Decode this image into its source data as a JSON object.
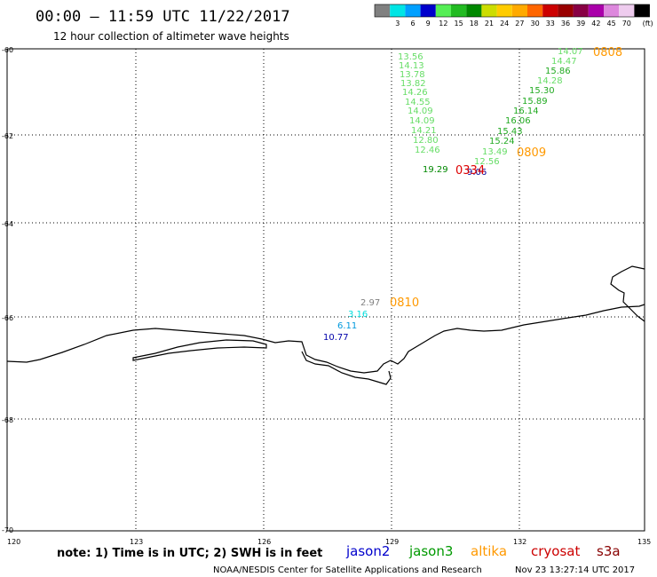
{
  "header": {
    "title": "00:00 – 11:59 UTC 11/22/2017",
    "subtitle": "12 hour collection of altimeter wave heights"
  },
  "legend": {
    "colors": [
      "#808080",
      "#00e5e5",
      "#00a0ff",
      "#0000cc",
      "#55ee55",
      "#22bb22",
      "#008800",
      "#ccdd00",
      "#ffcc00",
      "#ffaa00",
      "#ff6600",
      "#cc0000",
      "#990000",
      "#880044",
      "#aa00aa",
      "#dd88dd",
      "#eeccee",
      "#000000"
    ],
    "labels": [
      "3",
      "6",
      "9",
      "12",
      "15",
      "18",
      "21",
      "24",
      "27",
      "30",
      "33",
      "36",
      "39",
      "42",
      "45",
      "70"
    ],
    "unit": "(ft)"
  },
  "map": {
    "lon_ticks": [
      "120",
      "123",
      "126",
      "129",
      "132",
      "135"
    ],
    "lat_ticks": [
      "-60",
      "-62",
      "-64",
      "-66",
      "-68",
      "-70"
    ]
  },
  "readings": [
    {
      "text": "13.56",
      "color": "#66dd66"
    },
    {
      "text": "14.13",
      "color": "#66dd66"
    },
    {
      "text": "13.78",
      "color": "#66dd66"
    },
    {
      "text": "13.82",
      "color": "#66dd66"
    },
    {
      "text": "14.26",
      "color": "#66dd66"
    },
    {
      "text": "14.55",
      "color": "#66dd66"
    },
    {
      "text": "14.09",
      "color": "#66dd66"
    },
    {
      "text": "14.09",
      "color": "#66dd66"
    },
    {
      "text": "14.21",
      "color": "#66dd66"
    },
    {
      "text": "12.80",
      "color": "#66dd66"
    },
    {
      "text": "12.46",
      "color": "#66dd66"
    },
    {
      "text": "19.29",
      "color": "#008800"
    },
    {
      "text": "14.07",
      "color": "#66dd66"
    },
    {
      "text": "14.47",
      "color": "#66dd66"
    },
    {
      "text": "15.86",
      "color": "#22aa22"
    },
    {
      "text": "14.28",
      "color": "#66dd66"
    },
    {
      "text": "15.30",
      "color": "#22aa22"
    },
    {
      "text": "15.89",
      "color": "#22aa22"
    },
    {
      "text": "16.14",
      "color": "#22aa22"
    },
    {
      "text": "16.06",
      "color": "#22aa22"
    },
    {
      "text": "15.43",
      "color": "#22aa22"
    },
    {
      "text": "15.24",
      "color": "#22aa22"
    },
    {
      "text": "13.49",
      "color": "#66dd66"
    },
    {
      "text": "12.56",
      "color": "#66dd66"
    },
    {
      "text": "9.06",
      "color": "#000099"
    },
    {
      "text": "2.97",
      "color": "#808080"
    },
    {
      "text": "3.16",
      "color": "#00dddd"
    },
    {
      "text": "6.11",
      "color": "#0099dd"
    },
    {
      "text": "10.77",
      "color": "#0000aa"
    }
  ],
  "times": [
    {
      "text": "0808",
      "color": "#ff9900"
    },
    {
      "text": "0809",
      "color": "#ff9900"
    },
    {
      "text": "0334",
      "color": "#dd0000"
    },
    {
      "text": "0810",
      "color": "#ff9900"
    }
  ],
  "footer": {
    "note": "note:  1) Time is in UTC;  2) SWH is in feet",
    "satellites": [
      {
        "name": "jason2",
        "color": "#0000cc"
      },
      {
        "name": "jason3",
        "color": "#009900"
      },
      {
        "name": "altika",
        "color": "#ff9900"
      },
      {
        "name": "cryosat",
        "color": "#cc0000"
      },
      {
        "name": "s3a",
        "color": "#880000"
      }
    ],
    "credit": "NOAA/NESDIS Center for Satellite Applications and Research",
    "timestamp": "Nov 23 13:27:14 UTC 2017"
  }
}
